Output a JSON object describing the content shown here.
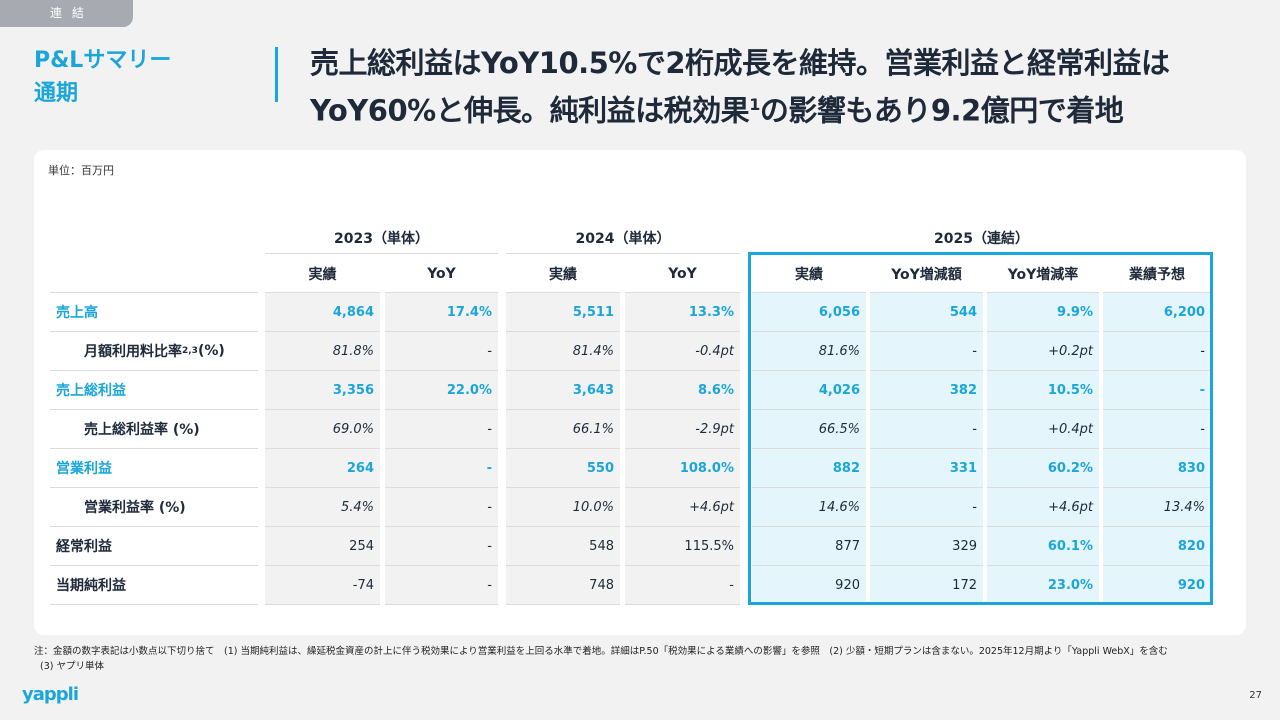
{
  "tag": "連 結",
  "section": {
    "line1": "P&Lサマリー",
    "line2": "通期"
  },
  "headline": {
    "line1": "売上総利益はYoY10.5%で2桁成長を維持。営業利益と経常利益は",
    "line2a": "YoY60%と伸長。純利益は税効果",
    "sup": "1",
    "line2b": "の影響もあり9.2億円で着地"
  },
  "unit": "単位：百万円",
  "groups": [
    "2023（単体）",
    "2024（単体）",
    "2025（連結）"
  ],
  "columns": [
    "実績",
    "YoY",
    "実績",
    "YoY",
    "実績",
    "YoY増減額",
    "YoY増減率",
    "業績予想"
  ],
  "rows": [
    {
      "label": "売上高",
      "type": "main",
      "values": [
        "4,864",
        "17.4%",
        "5,511",
        "13.3%",
        "6,056",
        "544",
        "9.9%",
        "6,200"
      ]
    },
    {
      "label": "月額利用料比率",
      "sup": "2,3",
      "suffix": " (%)",
      "type": "ratio",
      "values": [
        "81.8%",
        "-",
        "81.4%",
        "-0.4pt",
        "81.6%",
        "-",
        "+0.2pt",
        "-"
      ]
    },
    {
      "label": "売上総利益",
      "type": "main",
      "values": [
        "3,356",
        "22.0%",
        "3,643",
        "8.6%",
        "4,026",
        "382",
        "10.5%",
        "-"
      ]
    },
    {
      "label": "売上総利益率 (%)",
      "type": "ratio",
      "values": [
        "69.0%",
        "-",
        "66.1%",
        "-2.9pt",
        "66.5%",
        "-",
        "+0.4pt",
        "-"
      ]
    },
    {
      "label": "営業利益",
      "type": "main",
      "values": [
        "264",
        "-",
        "550",
        "108.0%",
        "882",
        "331",
        "60.2%",
        "830"
      ]
    },
    {
      "label": "営業利益率 (%)",
      "type": "ratio",
      "values": [
        "5.4%",
        "-",
        "10.0%",
        "+4.6pt",
        "14.6%",
        "-",
        "+4.6pt",
        "13.4%"
      ]
    },
    {
      "label": "経常利益",
      "type": "plain",
      "values": [
        "254",
        "-",
        "548",
        "115.5%",
        "877",
        "329",
        "60.1%",
        "820"
      ]
    },
    {
      "label": "当期純利益",
      "type": "plain",
      "values": [
        "-74",
        "-",
        "748",
        "-",
        "920",
        "172",
        "23.0%",
        "920"
      ]
    }
  ],
  "notes": {
    "line1": "注：金額の数字表記は小数点以下切り捨て　(1) 当期純利益は、繰延税金資産の計上に伴う税効果により営業利益を上回る水準で着地。詳細はP.50「税効果による業績への影響」を参照　(2) 少額・短期プランは含まない。2025年12月期より「Yappli WebX」を含む",
    "line2": "(3) ヤプリ単体"
  },
  "logo": "yappli",
  "page": "27",
  "colors": {
    "accent": "#1ba6d9",
    "highlight_bg": "#e5f5fc"
  }
}
